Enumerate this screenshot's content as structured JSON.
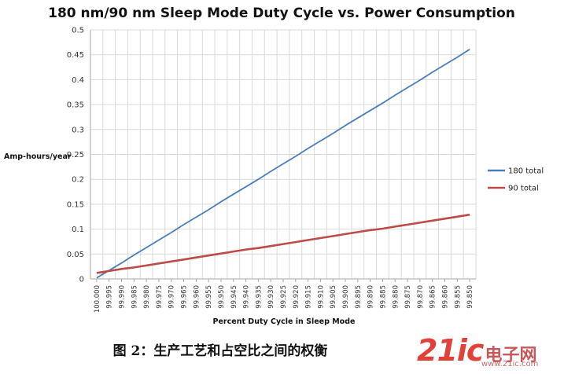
{
  "chart_data": {
    "type": "line",
    "title": "180 nm/90 nm Sleep Mode Duty Cycle vs. Power Consumption",
    "xlabel": "Percent Duty Cycle in Sleep Mode",
    "ylabel": "Amp-hours/year",
    "categories": [
      "100.000",
      "99.995",
      "99.990",
      "99.985",
      "99.980",
      "99.975",
      "99.970",
      "99.965",
      "99.960",
      "99.955",
      "99.950",
      "99.945",
      "99.940",
      "99.935",
      "99.930",
      "99.925",
      "99.920",
      "99.915",
      "99.910",
      "99.905",
      "99.900",
      "99.895",
      "99.890",
      "99.885",
      "99.880",
      "99.875",
      "99.870",
      "99.865",
      "99.860",
      "99.855",
      "99.850"
    ],
    "ylim": [
      0,
      0.5
    ],
    "yticks": [
      "0",
      "0.05",
      "0.1",
      "0.15",
      "0.2",
      "0.25",
      "0.3",
      "0.35",
      "0.4",
      "0.45",
      "0.5"
    ],
    "grid": true,
    "legend_position": "right",
    "series": [
      {
        "name": "180 total",
        "color": "#4a7ebb",
        "values": [
          0.002,
          0.017,
          0.032,
          0.048,
          0.063,
          0.078,
          0.093,
          0.109,
          0.124,
          0.139,
          0.155,
          0.17,
          0.185,
          0.2,
          0.216,
          0.231,
          0.246,
          0.262,
          0.277,
          0.292,
          0.308,
          0.323,
          0.338,
          0.353,
          0.369,
          0.384,
          0.399,
          0.415,
          0.43,
          0.445,
          0.461
        ]
      },
      {
        "name": "90 total",
        "color": "#be4b48",
        "values": [
          0.012,
          0.016,
          0.02,
          0.023,
          0.027,
          0.031,
          0.035,
          0.039,
          0.043,
          0.047,
          0.051,
          0.055,
          0.059,
          0.062,
          0.066,
          0.07,
          0.074,
          0.078,
          0.082,
          0.086,
          0.09,
          0.094,
          0.098,
          0.101,
          0.105,
          0.109,
          0.113,
          0.117,
          0.121,
          0.125,
          0.129
        ]
      }
    ]
  },
  "caption": "图 2：生产工艺和占空比之间的权衡",
  "watermark": {
    "logo": "21ic",
    "text": "电子网",
    "url": "www.21ic.com"
  }
}
